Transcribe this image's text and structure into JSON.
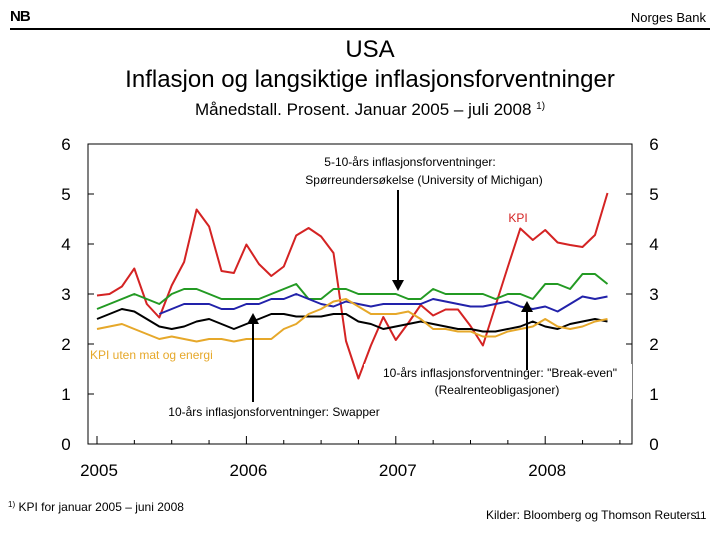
{
  "header": {
    "logo_text": "NB",
    "bank_name": "Norges Bank",
    "title_line1": "USA",
    "title_line2": "Inflasjon og langsiktige inflasjonsforventninger",
    "subtitle": "Månedstall. Prosent. Januar 2005 – juli 2008",
    "subtitle_note": "1)"
  },
  "footer": {
    "footnote_mark": "1)",
    "footnote": "KPI for januar 2005 – juni 2008",
    "source": "Kilder: Bloomberg og Thomson Reuters",
    "page_number": "11"
  },
  "colors": {
    "kpi": "#d42323",
    "michigan": "#239a23",
    "breakeven": "#2222aa",
    "swapper": "#000000",
    "core": "#e6a82a"
  },
  "chart_data": {
    "type": "line",
    "ylim": [
      0,
      6
    ],
    "yticks": [
      "0",
      "1",
      "2",
      "3",
      "4",
      "5",
      "6"
    ],
    "xticks": [
      {
        "label": "2005",
        "month": 0
      },
      {
        "label": "2006",
        "month": 12
      },
      {
        "label": "2007",
        "month": 24
      },
      {
        "label": "2008",
        "month": 36
      }
    ],
    "x_start": "Januar 2005",
    "x_end": "Juli 2008",
    "series": [
      {
        "key": "kpi",
        "name": "KPI",
        "start_month": 0,
        "values": [
          2.97,
          3.0,
          3.15,
          3.51,
          2.8,
          2.53,
          3.17,
          3.64,
          4.69,
          4.35,
          3.46,
          3.42,
          3.99,
          3.6,
          3.36,
          3.55,
          4.17,
          4.32,
          4.15,
          3.82,
          2.06,
          1.31,
          1.97,
          2.54,
          2.08,
          2.42,
          2.78,
          2.57,
          2.69,
          2.69,
          2.36,
          1.97,
          2.76,
          3.54,
          4.31,
          4.08,
          4.28,
          4.03,
          3.98,
          3.94,
          4.18,
          5.02
        ]
      },
      {
        "key": "michigan",
        "name": "5-10-års inflasjonsforventninger: Spørreundersøkelse (University of Michigan)",
        "start_month": 0,
        "values": [
          2.7,
          2.8,
          2.9,
          3.0,
          2.9,
          2.8,
          3.0,
          3.1,
          3.1,
          3.0,
          2.9,
          2.9,
          2.9,
          2.9,
          3.0,
          3.1,
          3.2,
          2.9,
          2.9,
          3.1,
          3.1,
          3.0,
          3.0,
          3.0,
          3.0,
          2.9,
          2.9,
          3.1,
          3.0,
          3.0,
          3.0,
          3.0,
          2.9,
          3.0,
          3.0,
          2.9,
          3.2,
          3.2,
          3.1,
          3.4,
          3.4,
          3.2
        ]
      },
      {
        "key": "breakeven",
        "name": "10-års inflasjonsforventninger: \"Break-even\" (Realrenteobligasjoner)",
        "start_month": 5,
        "values": [
          2.6,
          2.7,
          2.8,
          2.8,
          2.8,
          2.7,
          2.7,
          2.8,
          2.8,
          2.9,
          2.9,
          3.0,
          2.9,
          2.8,
          2.75,
          2.85,
          2.8,
          2.75,
          2.8,
          2.8,
          2.8,
          2.8,
          2.9,
          2.85,
          2.8,
          2.75,
          2.75,
          2.8,
          2.85,
          2.75,
          2.7,
          2.75,
          2.65,
          2.8,
          2.95,
          2.9,
          2.95
        ]
      },
      {
        "key": "swapper",
        "name": "10-års inflasjonsforventninger: Swapper",
        "start_month": 0,
        "values": [
          2.5,
          2.6,
          2.7,
          2.65,
          2.5,
          2.35,
          2.3,
          2.35,
          2.45,
          2.5,
          2.4,
          2.3,
          2.4,
          2.5,
          2.6,
          2.6,
          2.55,
          2.55,
          2.55,
          2.6,
          2.6,
          2.45,
          2.4,
          2.3,
          2.35,
          2.4,
          2.45,
          2.4,
          2.35,
          2.3,
          2.3,
          2.25,
          2.25,
          2.3,
          2.35,
          2.45,
          2.35,
          2.3,
          2.4,
          2.45,
          2.5,
          2.45
        ]
      },
      {
        "key": "core",
        "name": "KPI uten mat og energi",
        "start_month": 0,
        "values": [
          2.3,
          2.35,
          2.4,
          2.3,
          2.2,
          2.1,
          2.15,
          2.1,
          2.05,
          2.1,
          2.1,
          2.05,
          2.1,
          2.1,
          2.1,
          2.3,
          2.4,
          2.6,
          2.7,
          2.85,
          2.9,
          2.75,
          2.6,
          2.6,
          2.6,
          2.65,
          2.5,
          2.3,
          2.3,
          2.25,
          2.25,
          2.15,
          2.15,
          2.25,
          2.3,
          2.35,
          2.5,
          2.35,
          2.3,
          2.35,
          2.45,
          2.5
        ]
      }
    ],
    "annotations": {
      "michigan": "5-10-års inflasjonsforventninger:",
      "michigan_line2": "Spørreundersøkelse (University of Michigan)",
      "kpi": "KPI",
      "core": "KPI uten mat og energi",
      "breakeven": "10-års inflasjonsforventninger: \"Break-even\"",
      "breakeven_line2": "(Realrenteobligasjoner)",
      "swapper": "10-års inflasjonsforventninger: Swapper"
    }
  }
}
